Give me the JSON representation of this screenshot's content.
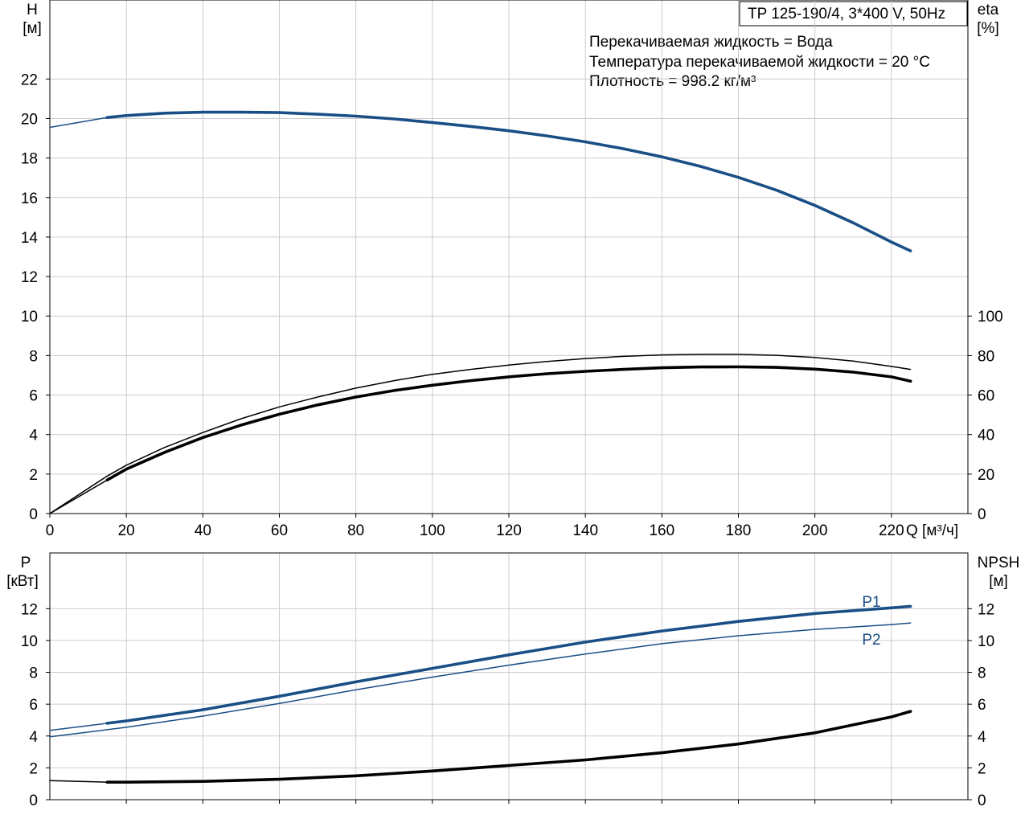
{
  "title_box": "TP 125-190/4, 3*400 V, 50Hz",
  "info_lines": [
    "Перекачиваемая жидкость = Вода",
    "Температура перекачиваемой жидкости = 20 °C",
    "Плотность = 998.2 кг/м³"
  ],
  "colors": {
    "head": "#1a4f86",
    "power": "#1a4f86",
    "eta": "#000000",
    "npsh": "#000000",
    "grid": "#cccccc",
    "axis": "#000000"
  },
  "chart_data": [
    {
      "type": "line",
      "x_axis": {
        "label": "Q [м³/ч]",
        "range": [
          0,
          240
        ],
        "ticks": [
          0,
          20,
          40,
          60,
          80,
          100,
          120,
          140,
          160,
          180,
          200,
          220
        ]
      },
      "y_left": {
        "label_top": "H",
        "label_unit": "[м]",
        "range": [
          0,
          26
        ],
        "ticks": [
          0,
          2,
          4,
          6,
          8,
          10,
          12,
          14,
          16,
          18,
          20,
          22
        ]
      },
      "y_right": {
        "label_top": "eta",
        "label_unit": "[%]",
        "range": [
          0,
          260
        ],
        "ticks": [
          0,
          20,
          40,
          60,
          80,
          100
        ]
      },
      "grid": true,
      "series": [
        {
          "axis": "left",
          "style": "thin",
          "x": [
            0,
            15
          ],
          "y": [
            19.55,
            20.05
          ]
        },
        {
          "axis": "left",
          "style": "thick",
          "x": [
            15,
            20,
            30,
            40,
            50,
            60,
            70,
            80,
            90,
            100,
            110,
            120,
            130,
            140,
            150,
            160,
            170,
            180,
            190,
            200,
            210,
            220,
            225
          ],
          "y": [
            20.05,
            20.15,
            20.27,
            20.32,
            20.32,
            20.3,
            20.22,
            20.12,
            19.98,
            19.8,
            19.6,
            19.38,
            19.12,
            18.82,
            18.47,
            18.06,
            17.58,
            17.02,
            16.37,
            15.6,
            14.72,
            13.75,
            13.3
          ]
        },
        {
          "axis": "right",
          "style": "thin",
          "x": [
            0,
            15,
            20,
            30,
            40,
            50,
            60,
            70,
            80,
            90,
            100,
            110,
            120,
            130,
            140,
            150,
            160,
            170,
            180,
            190,
            200,
            210,
            220,
            225
          ],
          "y": [
            0,
            19,
            24.5,
            33.5,
            41,
            48,
            54,
            59,
            63.5,
            67.3,
            70.5,
            73,
            75.2,
            77,
            78.5,
            79.6,
            80.3,
            80.6,
            80.6,
            80.1,
            79,
            77.2,
            74.5,
            73
          ]
        },
        {
          "axis": "right",
          "style": "thick",
          "x": [
            15,
            20,
            30,
            40,
            50,
            60,
            70,
            80,
            90,
            100,
            110,
            120,
            130,
            140,
            150,
            160,
            170,
            180,
            190,
            200,
            210,
            220,
            225
          ],
          "y": [
            17,
            22.5,
            31,
            38.5,
            44.8,
            50.3,
            55,
            59,
            62.3,
            65,
            67.3,
            69.2,
            70.8,
            72,
            73,
            73.8,
            74.2,
            74.3,
            74,
            73.1,
            71.6,
            69.2,
            67
          ]
        },
        {
          "axis": "right",
          "style": "thin",
          "x": [
            0,
            15
          ],
          "y": [
            0,
            17
          ]
        }
      ]
    },
    {
      "type": "line",
      "x_axis": {
        "range": [
          0,
          240
        ],
        "ticks": [
          20,
          40,
          60,
          80,
          100,
          120,
          140,
          160,
          180,
          200,
          220
        ]
      },
      "y_left": {
        "label_top": "P",
        "label_unit": "[кВт]",
        "range": [
          0,
          15.5
        ],
        "ticks": [
          0,
          2,
          4,
          6,
          8,
          10,
          12
        ]
      },
      "y_right": {
        "label_top": "NPSH",
        "label_unit": "[м]",
        "range": [
          0,
          15.5
        ],
        "ticks": [
          0,
          2,
          4,
          6,
          8,
          10,
          12
        ]
      },
      "grid": true,
      "series": [
        {
          "name": "P1",
          "axis": "left",
          "color": "blue",
          "style": "thin",
          "x": [
            0,
            15
          ],
          "y": [
            4.35,
            4.8
          ]
        },
        {
          "name": "P1",
          "axis": "left",
          "color": "blue",
          "style": "thick",
          "x": [
            15,
            20,
            40,
            60,
            80,
            100,
            120,
            140,
            160,
            180,
            200,
            220,
            225
          ],
          "y": [
            4.8,
            4.95,
            5.65,
            6.5,
            7.4,
            8.25,
            9.1,
            9.9,
            10.6,
            11.2,
            11.7,
            12.05,
            12.15
          ]
        },
        {
          "name": "P2",
          "axis": "left",
          "color": "blue",
          "style": "thin",
          "x": [
            0,
            15,
            20,
            40,
            60,
            80,
            100,
            120,
            140,
            160,
            180,
            200,
            220,
            225
          ],
          "y": [
            3.95,
            4.4,
            4.55,
            5.25,
            6.05,
            6.9,
            7.7,
            8.45,
            9.15,
            9.8,
            10.3,
            10.7,
            11.0,
            11.1
          ]
        },
        {
          "axis": "right",
          "color": "black",
          "style": "thin",
          "x": [
            0,
            15
          ],
          "y": [
            1.2,
            1.1
          ]
        },
        {
          "axis": "right",
          "color": "black",
          "style": "thick",
          "x": [
            15,
            20,
            40,
            60,
            80,
            100,
            120,
            140,
            160,
            180,
            200,
            220,
            225
          ],
          "y": [
            1.1,
            1.1,
            1.15,
            1.28,
            1.5,
            1.8,
            2.15,
            2.5,
            2.95,
            3.5,
            4.2,
            5.2,
            5.55
          ]
        }
      ],
      "series_labels": [
        "P1",
        "P2"
      ]
    }
  ]
}
